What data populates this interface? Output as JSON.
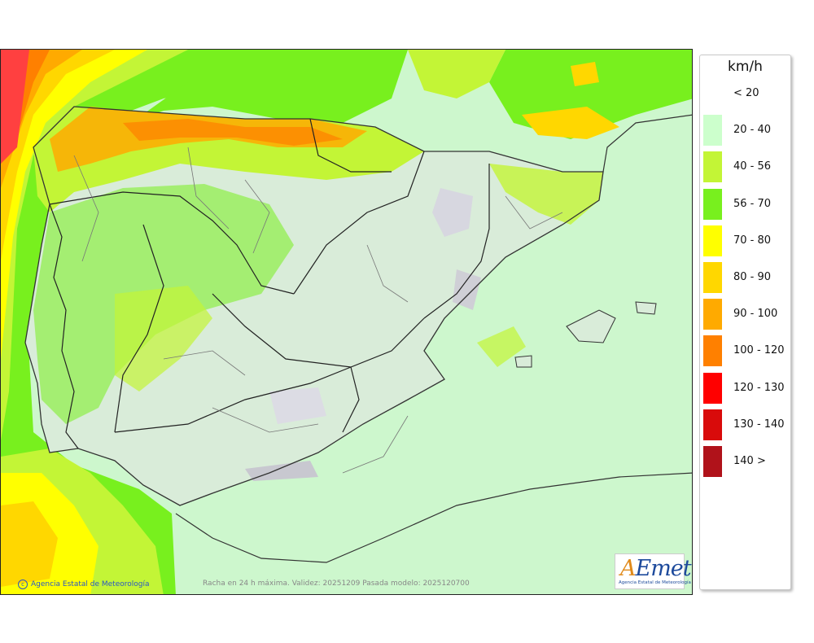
{
  "legend": {
    "unit": "km/h",
    "classes": [
      {
        "label": "< 20",
        "color": ""
      },
      {
        "label": "20 - 40",
        "color": "#ccffcc"
      },
      {
        "label": "40 - 56",
        "color": "#c3f536"
      },
      {
        "label": "56 - 70",
        "color": "#78f01e"
      },
      {
        "label": "70 - 80",
        "color": "#ffff00"
      },
      {
        "label": "80 - 90",
        "color": "#ffd700"
      },
      {
        "label": "90 - 100",
        "color": "#ffaa00"
      },
      {
        "label": "100 - 120",
        "color": "#ff8000"
      },
      {
        "label": "120 - 130",
        "color": "#ff0000"
      },
      {
        "label": "130 - 140",
        "color": "#d90b0b"
      },
      {
        "label": "140 >",
        "color": "#b0121a"
      }
    ]
  },
  "credit": "Agencia Estatal de Meteorología",
  "caption": "Racha en 24 h máxima. Validez: 20251209 Pasada modelo: 2025120700",
  "logo": {
    "mark": "AEmet",
    "subtitle": "Agencia Estatal de Meteorología"
  },
  "map": {
    "icon": "wind-gust-map",
    "sea_color": "#cdf7cd",
    "land_color": "#d9ecd9"
  }
}
